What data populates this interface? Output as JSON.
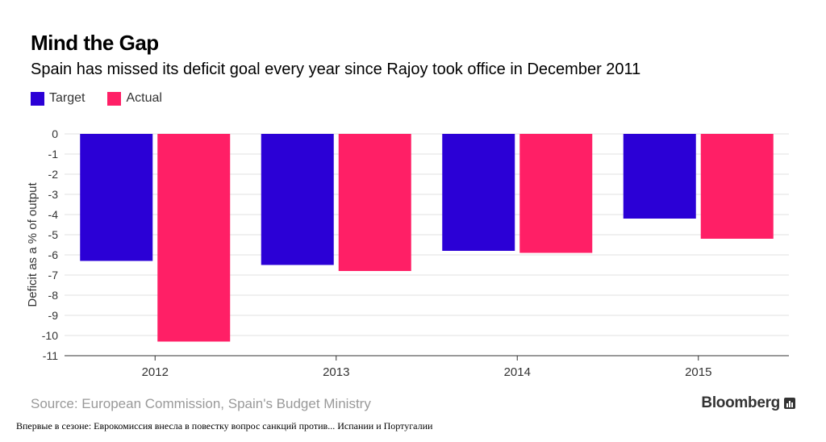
{
  "header": {
    "title": "Mind the Gap",
    "subtitle": "Spain has missed its deficit goal every year since Rajoy took office in December 2011"
  },
  "legend": {
    "items": [
      {
        "label": "Target",
        "color": "#2b00d6"
      },
      {
        "label": "Actual",
        "color": "#ff1f66"
      }
    ]
  },
  "footer": {
    "source": "Source: European Commission, Spain's Budget Ministry",
    "brand": "Bloomberg",
    "caption": "Впервые в сезоне: Еврокомиссия внесла в повестку вопрос санкций против... Испании и Португалии"
  },
  "chart_data": {
    "type": "bar",
    "categories": [
      "2012",
      "2013",
      "2014",
      "2015"
    ],
    "series": [
      {
        "name": "Target",
        "color": "#2b00d6",
        "values": [
          -6.3,
          -6.5,
          -5.8,
          -4.2
        ]
      },
      {
        "name": "Actual",
        "color": "#ff1f66",
        "values": [
          -10.3,
          -6.8,
          -5.9,
          -5.2
        ]
      }
    ],
    "ylabel": "Deficit as a % of output",
    "xlabel": "",
    "ylim": [
      -11,
      0
    ],
    "yticks": [
      0,
      -1,
      -2,
      -3,
      -4,
      -5,
      -6,
      -7,
      -8,
      -9,
      -10,
      -11
    ],
    "grid": true
  }
}
